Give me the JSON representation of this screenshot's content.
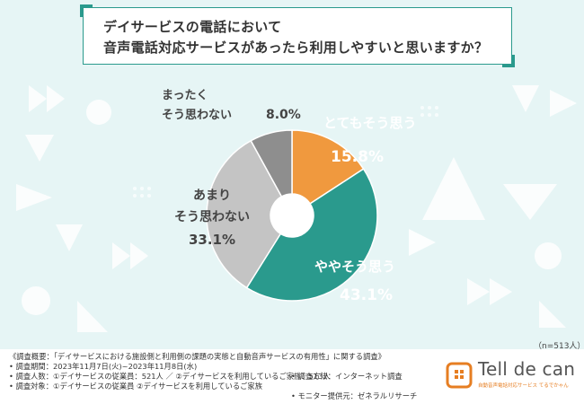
{
  "question": {
    "line1": "デイサービスの電話において",
    "line2": "音声電話対応サービスがあったら利用しやすいと思いますか？"
  },
  "colors": {
    "teal": "#2a9a8d",
    "orange": "#f0993e",
    "light_gray": "#c4c4c4",
    "dark_gray": "#8e8e8e",
    "background": "#e8f6f6"
  },
  "chart_data": {
    "type": "pie",
    "donut": true,
    "slices": [
      {
        "label": "とてもそう思う",
        "value": 15.8,
        "display": "15.8%",
        "color": "#f0993e"
      },
      {
        "label": "ややそう思う",
        "value": 43.1,
        "display": "43.1%",
        "color": "#2a9a8d"
      },
      {
        "label": "あまりそう思わない",
        "value": 33.1,
        "display": "33.1%",
        "color": "#c4c4c4"
      },
      {
        "label": "まったくそう思わない",
        "value": 8.0,
        "display": "8.0%",
        "color": "#8e8e8e"
      }
    ]
  },
  "n_label": "（n=513人）",
  "survey": {
    "title": "《調査概要：「デイサービスにおける施設側と利用側の課題の実態と自動音声サービスの有用性」に関する調査》",
    "period": "• 調査期間：2023年11月7日(火)~2023年11月8日(水)",
    "count": "• 調査人数：①デイサービスの従業員：521人 ／ ②デイサービスを利用しているご家族：513人",
    "target": "• 調査対象：①デイサービスの従業員 ②デイサービスを利用しているご家族",
    "method": "• 調査方法：インターネット調査",
    "provider": "• モニター提供元：ゼネラルリサーチ"
  },
  "logo": {
    "name": "Tell de can",
    "tagline": "自動音声電話対応サービス てるでかゃん"
  }
}
